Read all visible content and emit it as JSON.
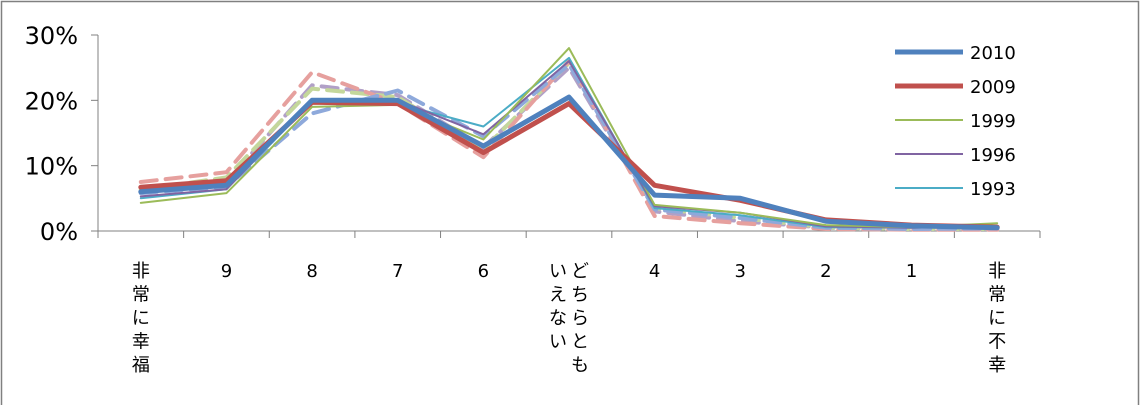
{
  "colors": {
    "axis": "#808080",
    "frame": "#808080"
  },
  "chart_data": {
    "type": "line",
    "categories": [
      "非常に幸福",
      "9",
      "8",
      "7",
      "6",
      "どちらともいえない",
      "4",
      "3",
      "2",
      "1",
      "非常に不幸"
    ],
    "ylim": [
      0,
      30
    ],
    "y_ticks": [
      {
        "value": 0,
        "label": "0%"
      },
      {
        "value": 10,
        "label": "10%"
      },
      {
        "value": 20,
        "label": "20%"
      },
      {
        "value": 30,
        "label": "30%"
      }
    ],
    "legend_position": "top-right",
    "legend_entries": [
      "2010",
      "2009",
      "1999",
      "1996",
      "1993"
    ],
    "series": [
      {
        "name": "2010",
        "color": "#4F81BD",
        "dash": "solid",
        "width": 5,
        "in_legend": true,
        "values": [
          6.0,
          7.0,
          20.0,
          20.0,
          13.0,
          20.5,
          5.5,
          5.0,
          1.5,
          0.8,
          0.5
        ]
      },
      {
        "name": "2009",
        "color": "#C0504D",
        "dash": "solid",
        "width": 5,
        "in_legend": true,
        "values": [
          6.7,
          7.7,
          19.7,
          19.5,
          12.0,
          19.5,
          7.0,
          4.7,
          1.7,
          0.9,
          0.6
        ]
      },
      {
        "name": "1999",
        "color": "#9BBB59",
        "dash": "solid",
        "width": 2,
        "in_legend": true,
        "values": [
          4.3,
          5.8,
          19.0,
          19.3,
          14.0,
          28.0,
          4.0,
          2.8,
          0.9,
          0.6,
          1.2
        ]
      },
      {
        "name": "1996",
        "color": "#8064A2",
        "dash": "solid",
        "width": 2,
        "in_legend": true,
        "values": [
          5.3,
          6.4,
          20.0,
          20.0,
          14.8,
          26.0,
          3.8,
          2.8,
          0.7,
          0.5,
          0.8
        ]
      },
      {
        "name": "1993",
        "color": "#4BACC6",
        "dash": "solid",
        "width": 2,
        "in_legend": true,
        "values": [
          5.0,
          6.4,
          19.8,
          19.5,
          16.0,
          26.5,
          3.5,
          2.4,
          0.6,
          0.5,
          0.8
        ]
      },
      {
        "color": "#8EA9DB",
        "dash": "dashed",
        "width": 4,
        "in_legend": false,
        "values": [
          5.8,
          6.8,
          18.0,
          21.5,
          14.5,
          25.5,
          3.3,
          2.0,
          0.5,
          0.3,
          0.4
        ]
      },
      {
        "color": "#E6A09E",
        "dash": "dashed",
        "width": 4,
        "in_legend": false,
        "values": [
          7.5,
          9.0,
          24.3,
          19.5,
          11.3,
          26.0,
          2.3,
          1.2,
          0.3,
          0.2,
          0.2
        ]
      },
      {
        "color": "#C4D79B",
        "dash": "dashed",
        "width": 4,
        "in_legend": false,
        "values": [
          6.3,
          8.2,
          21.8,
          20.5,
          12.5,
          25.7,
          3.5,
          2.0,
          0.5,
          0.3,
          0.3
        ]
      },
      {
        "color": "#B1A0C7",
        "dash": "dashed",
        "width": 4,
        "in_legend": false,
        "values": [
          6.0,
          7.5,
          22.3,
          20.8,
          12.8,
          25.0,
          3.0,
          1.5,
          0.5,
          0.3,
          0.3
        ]
      }
    ]
  }
}
